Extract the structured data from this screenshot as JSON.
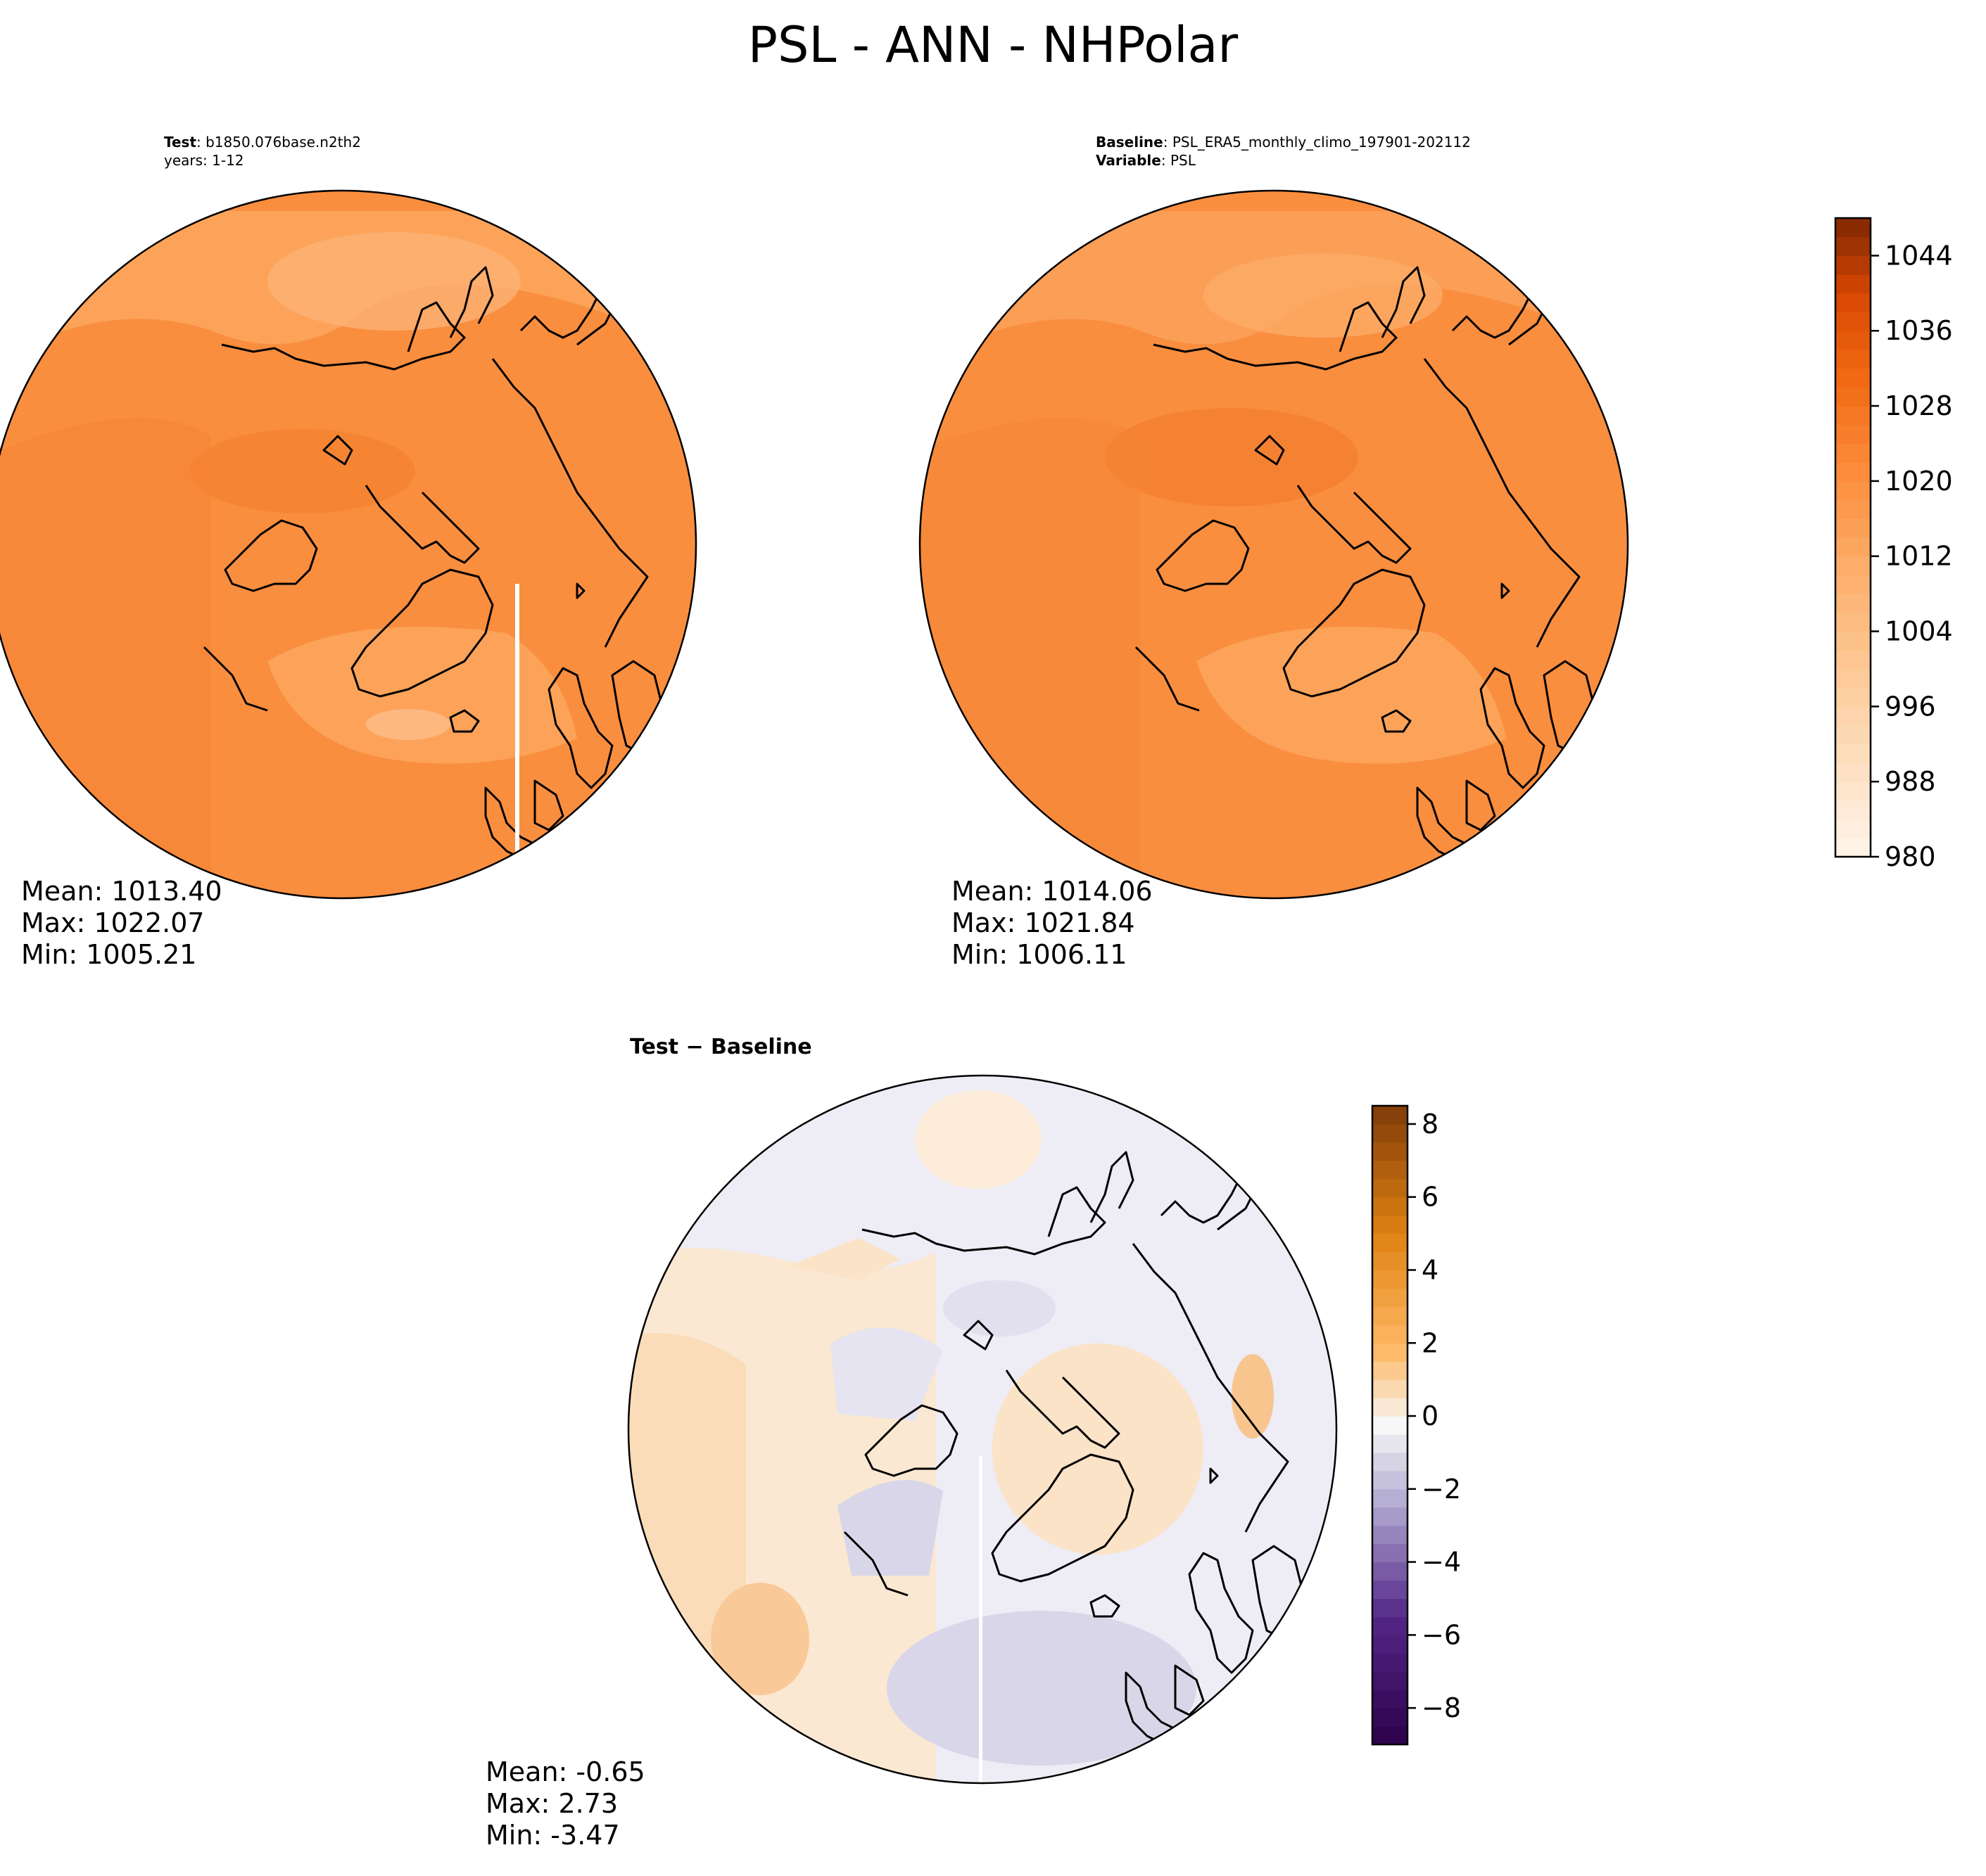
{
  "figure": {
    "title": "PSL - ANN - NHPolar"
  },
  "test_panel": {
    "label_key": "Test",
    "label_value": ": b1850.076base.n2th2",
    "label_line2": "years: 1-12",
    "stats": {
      "mean": "Mean: 1013.40",
      "max": "Max: 1022.07",
      "min": "Min: 1005.21"
    }
  },
  "baseline_panel": {
    "label_key": "Baseline",
    "label_value": ": PSL_ERA5_monthly_climo_197901-202112",
    "label_key2": "Variable",
    "label_value2": ": PSL",
    "stats": {
      "mean": "Mean: 1014.06",
      "max": "Max: 1021.84",
      "min": "Min: 1006.11"
    }
  },
  "diff_panel": {
    "title": "Test − Baseline",
    "stats": {
      "mean": "Mean: -0.65",
      "max": "Max:  2.73",
      "min": "Min: -3.47"
    }
  },
  "colorbar_top": {
    "range": [
      980,
      1048
    ],
    "ticks": [
      "980",
      "988",
      "996",
      "1004",
      "1012",
      "1020",
      "1028",
      "1036",
      "1044"
    ],
    "tick_values": [
      980,
      988,
      996,
      1004,
      1012,
      1020,
      1028,
      1036,
      1044
    ],
    "colormap": "Oranges"
  },
  "colorbar_diff": {
    "range": [
      -9,
      8.5
    ],
    "ticks": [
      "−8",
      "−6",
      "−4",
      "−2",
      "0",
      "2",
      "4",
      "6",
      "8"
    ],
    "tick_values": [
      -8,
      -6,
      -4,
      -2,
      0,
      2,
      4,
      6,
      8
    ],
    "colormap": "PuOr_r"
  },
  "colors": {
    "coast": "#000000",
    "orange_main": "#f98d3e",
    "orange_light": "#fcae6b",
    "orange_dark": "#ee6c1d"
  }
}
